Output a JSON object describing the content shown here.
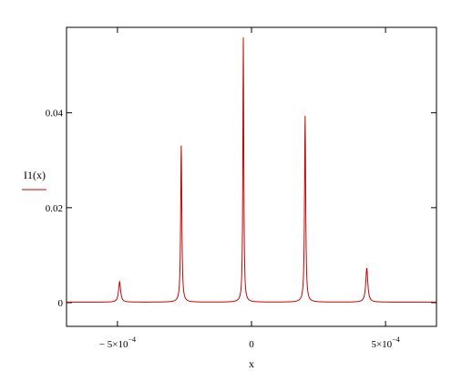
{
  "chart_data": {
    "type": "line",
    "title": "",
    "xlabel": "x",
    "ylabel": "I1(x)",
    "xlim": [
      -0.00069,
      0.00069
    ],
    "ylim": [
      -0.005,
      0.058
    ],
    "x_ticks": [
      {
        "value": -0.0005,
        "mantissa": "− 5×10",
        "exp": "−4"
      },
      {
        "value": 0,
        "mantissa": "0",
        "exp": ""
      },
      {
        "value": 0.0005,
        "mantissa": "5×10",
        "exp": "−4"
      }
    ],
    "y_ticks": [
      {
        "value": 0,
        "label": "0"
      },
      {
        "value": 0.02,
        "label": "0.02"
      },
      {
        "value": 0.04,
        "label": "0.04"
      }
    ],
    "series": [
      {
        "color": "#cc0000",
        "peaks": [
          {
            "x": -0.000492,
            "y": 0.0043,
            "width": 4.5e-06
          },
          {
            "x": -0.000262,
            "y": 0.0332,
            "width": 2.5e-06
          },
          {
            "x": -3.05e-05,
            "y": 0.0558,
            "width": 2e-06
          },
          {
            "x": 0.0002,
            "y": 0.0393,
            "width": 2.5e-06
          },
          {
            "x": 0.00043,
            "y": 0.0072,
            "width": 4.5e-06
          }
        ],
        "baseline": 0.0001
      }
    ],
    "grid": false,
    "legend": "left"
  }
}
